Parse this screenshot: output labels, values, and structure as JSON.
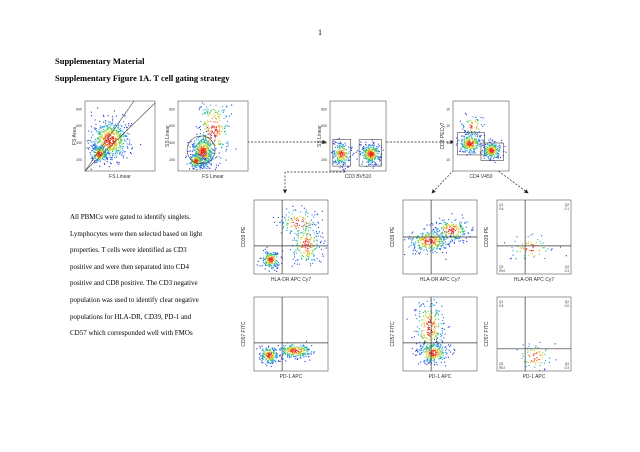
{
  "page_number": "1",
  "headings": {
    "title": "Supplementary Material",
    "figure": "Supplementary Figure 1A. T cell gating strategy"
  },
  "caption_lines": [
    "All PBMCs were gated to identify singlets.",
    "Lymphocytes were then selected based on light",
    "properties. T cells were identified as CD3",
    "positive and were then separated into CD4",
    "positive and CD8 positive. The CD3 negative",
    "population was used to identify clear negative",
    "populations for HLA-DR, CD39, PD-1 and",
    "CD57 which corresponded well with FMOs"
  ],
  "chart_data": [
    {
      "type": "scatter",
      "id": "singlets",
      "xlabel": "FS Linear",
      "ylabel": "FS Area",
      "yticks": [
        "800",
        "600",
        "400",
        "200"
      ]
    },
    {
      "type": "scatter",
      "id": "lymphocytes",
      "xlabel": "FS Linear",
      "ylabel": "SS Linear",
      "yticks": [
        "800",
        "600",
        "400",
        "200"
      ]
    },
    {
      "type": "scatter",
      "id": "cd3",
      "xlabel": "CD3 BV510",
      "ylabel": "SS Linear",
      "yticks": [
        "800",
        "600",
        "400",
        "200"
      ]
    },
    {
      "type": "scatter",
      "id": "cd4cd8",
      "xlabel": "CD4 V450",
      "ylabel": "CD8 PECy7",
      "yticks": [
        "10",
        "10",
        "10",
        "10"
      ]
    },
    {
      "type": "scatter",
      "id": "cd8-cd39-hladr",
      "xlabel": "HLA-DR APC Cy7",
      "ylabel": "CD39 PE",
      "quadrants": [
        "",
        "",
        "",
        ""
      ]
    },
    {
      "type": "scatter",
      "id": "cd4-cd39-hladr",
      "xlabel": "HLA-DR APC Cy7",
      "ylabel": "CD39 PE",
      "quadrants": [
        "",
        "",
        "",
        ""
      ]
    },
    {
      "type": "scatter",
      "id": "neg-cd39-hladr",
      "xlabel": "HLA-DR APC Cy7",
      "ylabel": "CD39 PE",
      "quadrants": [
        "Q1\n0.6",
        "Q2\n0.1",
        "Q3\n99.0",
        "Q4\n0.3"
      ]
    },
    {
      "type": "scatter",
      "id": "cd8-cd57-pd1",
      "xlabel": "PD-1 APC",
      "ylabel": "CD57 FITC",
      "quadrants": [
        "",
        "",
        "",
        ""
      ]
    },
    {
      "type": "scatter",
      "id": "cd4-cd57-pd1",
      "xlabel": "PD-1 APC",
      "ylabel": "CD57 FITC",
      "quadrants": [
        "",
        "",
        "",
        ""
      ]
    },
    {
      "type": "scatter",
      "id": "neg-cd57-pd1",
      "xlabel": "PD-1 APC",
      "ylabel": "CD57 FITC",
      "quadrants": [
        "Q1\n0.5",
        "Q2\n0.0",
        "Q3\n99.2",
        "Q4\n0.3"
      ]
    }
  ]
}
